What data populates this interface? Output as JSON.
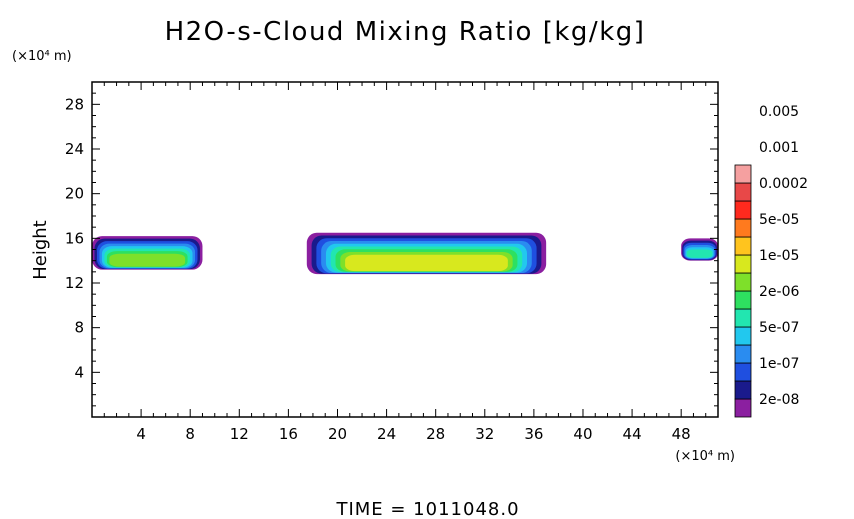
{
  "chart_data": {
    "type": "heatmap",
    "title": "H2O-s-Cloud Mixing Ratio [kg/kg]",
    "ylabel": "Height",
    "y_unit": "(×10⁴ m)",
    "x_unit": "(×10⁴ m)",
    "xlim": [
      0,
      51
    ],
    "ylim": [
      0,
      30
    ],
    "x_ticks": [
      4,
      8,
      12,
      16,
      20,
      24,
      28,
      32,
      36,
      40,
      44,
      48
    ],
    "y_ticks": [
      4,
      8,
      12,
      16,
      20,
      24,
      28
    ],
    "footer": "TIME = 1011048.0",
    "colorbar": {
      "colors": [
        "#8B1FA0",
        "#1A1A8C",
        "#1F4FE0",
        "#2A8CF0",
        "#22C8EE",
        "#22E6B0",
        "#2EE060",
        "#7EE02A",
        "#D8E81E",
        "#FFC41E",
        "#FF7A1E",
        "#FF2A1E",
        "#E84848",
        "#F5A0A0"
      ],
      "labels": [
        "2e-08",
        "1e-07",
        "5e-07",
        "2e-06",
        "1e-05",
        "5e-05",
        "0.0002",
        "0.001",
        "0.005"
      ]
    },
    "clouds": [
      {
        "x_range": [
          0,
          9
        ],
        "base": 13.2,
        "top": 16.2,
        "peak_level": 7
      },
      {
        "x_range": [
          17.5,
          37
        ],
        "base": 12.8,
        "top": 16.5,
        "peak_level": 8
      },
      {
        "x_range": [
          48,
          51
        ],
        "base": 14.0,
        "top": 16.0,
        "peak_level": 5
      }
    ]
  }
}
